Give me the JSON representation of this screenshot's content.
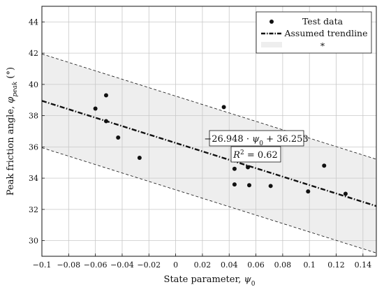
{
  "chart_data": {
    "type": "scatter",
    "xlabel_main": "State parameter, ",
    "xlabel_sym": "ψ",
    "xlabel_sub": "0",
    "ylabel_main": "Peak friction angle, ",
    "ylabel_sym": "φ",
    "ylabel_sub": "peak",
    "ylabel_unit": " (°)",
    "xlim": [
      -0.1,
      0.15
    ],
    "ylim": [
      29,
      45
    ],
    "x_ticks": [
      -0.1,
      -0.08,
      -0.06,
      -0.04,
      -0.02,
      0,
      0.02,
      0.04,
      0.06,
      0.08,
      0.1,
      0.12,
      0.14
    ],
    "x_tick_labels": [
      "−0.1",
      "−0.08",
      "−0.06",
      "−0.04",
      "−0.02",
      "0",
      "0.02",
      "0.04",
      "0.06",
      "0.08",
      "0.1",
      "0.12",
      "0.14"
    ],
    "y_ticks": [
      30,
      32,
      34,
      36,
      38,
      40,
      42,
      44
    ],
    "y_tick_labels": [
      "30",
      "32",
      "34",
      "36",
      "38",
      "40",
      "42",
      "44"
    ],
    "grid": true,
    "legend_position": "top-right",
    "legend": {
      "test_data": "Test data",
      "trendline": "Assumed trendline",
      "band": "*"
    },
    "test_data": {
      "x": [
        -0.06,
        -0.052,
        -0.052,
        -0.043,
        -0.027,
        0.036,
        0.044,
        0.044,
        0.054,
        0.055,
        0.071,
        0.099,
        0.111,
        0.127
      ],
      "y": [
        38.45,
        39.3,
        37.65,
        36.6,
        35.3,
        38.55,
        34.6,
        33.6,
        34.7,
        33.55,
        33.5,
        33.15,
        34.8,
        33.0
      ]
    },
    "trendline": {
      "slope": -26.948,
      "intercept": 36.253
    },
    "band": {
      "offset": 3.0
    },
    "annotations": {
      "equation": "−26.948 · ψ0 + 36.253",
      "equation_prefix": "−26.948 · ",
      "equation_sym": "ψ",
      "equation_sub": "0",
      "equation_suffix": " + 36.253",
      "r2_label": "R",
      "r2_sup": "2",
      "r2_value": " = 0.62"
    },
    "colors": {
      "points": "#111111",
      "trendline": "#111111",
      "band_fill": "#eeeeee",
      "grid": "#c8c8c8"
    }
  }
}
